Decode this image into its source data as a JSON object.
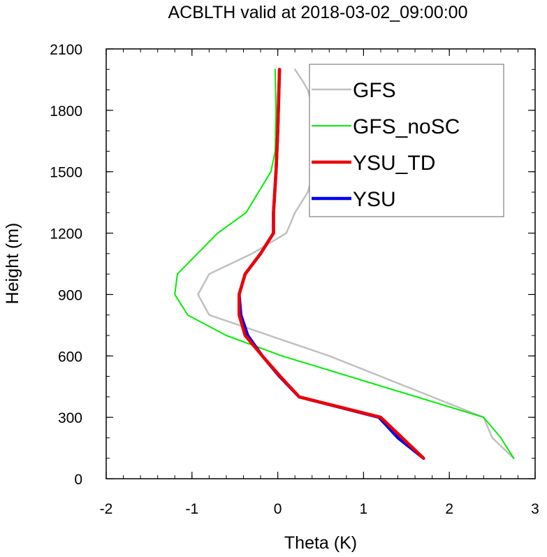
{
  "chart_data": {
    "type": "line",
    "title": "ACBLTH valid at 2018-03-02_09:00:00",
    "xlabel": "Theta (K)",
    "ylabel": "Height (m)",
    "xlim": [
      -2,
      3
    ],
    "ylim": [
      0,
      2100
    ],
    "xticks": [
      "-2",
      "-1",
      "0",
      "1",
      "2",
      "3"
    ],
    "yticks": [
      "0",
      "300",
      "600",
      "900",
      "1200",
      "1500",
      "1800",
      "2100"
    ],
    "grid": false,
    "legend_position": "top-right",
    "series": [
      {
        "name": "GFS",
        "color": "#c0c0c0",
        "x": [
          2.75,
          2.5,
          2.4,
          1.8,
          0.6,
          -0.8,
          -0.93,
          -0.8,
          -0.3,
          0.1,
          0.2,
          0.35,
          0.42,
          0.47,
          0.47,
          0.42,
          0.35,
          0.28,
          0.2
        ],
        "y": [
          100,
          200,
          300,
          400,
          600,
          800,
          900,
          1000,
          1100,
          1200,
          1300,
          1400,
          1500,
          1600,
          1700,
          1800,
          1900,
          1950,
          2000
        ]
      },
      {
        "name": "GFS_noSC",
        "color": "#00ee00",
        "x": [
          2.75,
          2.6,
          2.4,
          0.05,
          -0.6,
          -1.05,
          -1.2,
          -1.17,
          -0.7,
          -0.37,
          -0.08,
          -0.03,
          -0.02,
          -0.03
        ],
        "y": [
          100,
          200,
          300,
          600,
          700,
          800,
          900,
          1000,
          1200,
          1300,
          1500,
          1600,
          1800,
          2000
        ]
      },
      {
        "name": "YSU_TD",
        "color": "#ee0000",
        "x": [
          1.7,
          1.45,
          1.2,
          0.25,
          0.03,
          -0.18,
          -0.38,
          -0.45,
          -0.45,
          -0.38,
          -0.2,
          -0.05,
          -0.05,
          -0.02,
          0.0,
          0.02
        ],
        "y": [
          100,
          200,
          300,
          400,
          500,
          600,
          700,
          800,
          900,
          1000,
          1100,
          1200,
          1300,
          1500,
          1700,
          2000
        ]
      },
      {
        "name": "YSU",
        "color": "#0000ee",
        "x": [
          1.7,
          1.4,
          1.18,
          0.25,
          0.02,
          -0.18,
          -0.35,
          -0.43,
          -0.45,
          -0.38,
          -0.2,
          -0.05,
          -0.05,
          -0.02,
          0.0,
          0.02
        ],
        "y": [
          100,
          200,
          300,
          400,
          500,
          600,
          700,
          800,
          900,
          1000,
          1100,
          1200,
          1300,
          1500,
          1700,
          2000
        ]
      }
    ]
  }
}
